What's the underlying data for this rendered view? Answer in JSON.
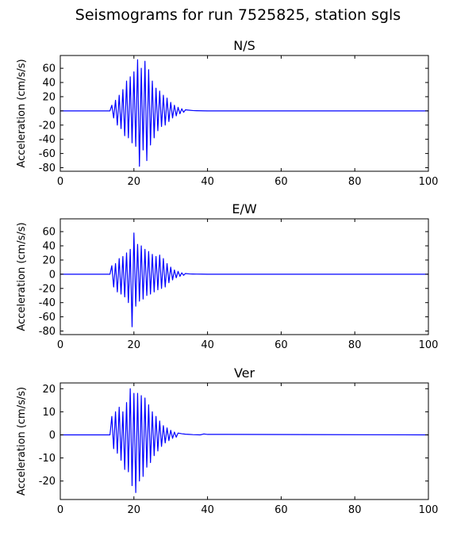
{
  "figure": {
    "title": "Seismograms for run 7525825, station sgls"
  },
  "chart_data": [
    {
      "type": "line",
      "title": "N/S",
      "xlabel": "",
      "ylabel": "Acceleration (cm/s/s)",
      "xlim": [
        0,
        100
      ],
      "ylim": [
        -85,
        78
      ],
      "xticks": [
        0,
        20,
        40,
        60,
        80,
        100
      ],
      "yticks": [
        -80,
        -60,
        -40,
        -20,
        0,
        20,
        40,
        60
      ],
      "grid": false,
      "color": "#0000ff",
      "series": [
        {
          "x": [
            0,
            13.5,
            14,
            14.5,
            15,
            15.5,
            16,
            16.5,
            17,
            17.5,
            18,
            18.5,
            19,
            19.5,
            20,
            20.5,
            21,
            21.5,
            22,
            22.5,
            23,
            23.5,
            24,
            24.5,
            25,
            25.5,
            26,
            26.5,
            27,
            27.5,
            28,
            28.5,
            29,
            29.5,
            30,
            30.5,
            31,
            31.5,
            32,
            32.5,
            33,
            33.5,
            34,
            35,
            36,
            37,
            40,
            100
          ],
          "y": [
            0,
            0,
            8,
            -10,
            15,
            -20,
            22,
            -25,
            30,
            -35,
            42,
            -38,
            48,
            -45,
            55,
            -50,
            72,
            -78,
            60,
            -55,
            70,
            -70,
            58,
            -48,
            42,
            -38,
            32,
            -28,
            28,
            -22,
            22,
            -20,
            18,
            -15,
            12,
            -10,
            8,
            -7,
            5,
            -4,
            3,
            -2,
            1.5,
            1,
            0.5,
            0.3,
            0,
            0
          ]
        }
      ]
    },
    {
      "type": "line",
      "title": "E/W",
      "xlabel": "",
      "ylabel": "Acceleration (cm/s/s)",
      "xlim": [
        0,
        100
      ],
      "ylim": [
        -85,
        78
      ],
      "xticks": [
        0,
        20,
        40,
        60,
        80,
        100
      ],
      "yticks": [
        -80,
        -60,
        -40,
        -20,
        0,
        20,
        40,
        60
      ],
      "grid": false,
      "color": "#0000ff",
      "series": [
        {
          "x": [
            0,
            13.5,
            14,
            14.5,
            15,
            15.5,
            16,
            16.5,
            17,
            17.5,
            18,
            18.5,
            19,
            19.5,
            20,
            20.5,
            21,
            21.5,
            22,
            22.5,
            23,
            23.5,
            24,
            24.5,
            25,
            25.5,
            26,
            26.5,
            27,
            27.5,
            28,
            28.5,
            29,
            29.5,
            30,
            30.5,
            31,
            31.5,
            32,
            32.5,
            33,
            33.5,
            34,
            35,
            36,
            37,
            40,
            100
          ],
          "y": [
            0,
            0,
            12,
            -18,
            15,
            -25,
            22,
            -28,
            25,
            -32,
            30,
            -40,
            35,
            -74,
            58,
            -45,
            42,
            -38,
            40,
            -35,
            35,
            -30,
            32,
            -28,
            28,
            -25,
            25,
            -22,
            27,
            -20,
            22,
            -18,
            15,
            -12,
            10,
            -8,
            6,
            -5,
            4,
            -3,
            2,
            -1.5,
            1,
            0.5,
            0.3,
            0.2,
            0,
            0
          ]
        }
      ]
    },
    {
      "type": "line",
      "title": "Ver",
      "xlabel": "",
      "ylabel": "Acceleration (cm/s/s)",
      "xlim": [
        0,
        100
      ],
      "ylim": [
        -28,
        22.5
      ],
      "xticks": [
        0,
        20,
        40,
        60,
        80,
        100
      ],
      "yticks": [
        -20,
        -10,
        0,
        10,
        20
      ],
      "grid": false,
      "color": "#0000ff",
      "series": [
        {
          "x": [
            0,
            13.5,
            14,
            14.5,
            15,
            15.5,
            16,
            16.5,
            17,
            17.5,
            18,
            18.5,
            19,
            19.5,
            20,
            20.5,
            21,
            21.5,
            22,
            22.5,
            23,
            23.5,
            24,
            24.5,
            25,
            25.5,
            26,
            26.5,
            27,
            27.5,
            28,
            28.5,
            29,
            29.5,
            30,
            30.5,
            31,
            31.5,
            32,
            33,
            34,
            35,
            36,
            38,
            39,
            40,
            45,
            100
          ],
          "y": [
            0,
            0,
            8,
            -6,
            10,
            -8,
            12,
            -11,
            10,
            -15,
            14,
            -16,
            20,
            -22,
            18,
            -25,
            18,
            -20,
            17,
            -18,
            16,
            -14,
            13,
            -12,
            10,
            -9,
            8,
            -7,
            6,
            -5,
            4,
            -3.5,
            3,
            -2.5,
            2,
            -1.5,
            1.2,
            -1,
            0.8,
            0.5,
            0.3,
            0.2,
            0.1,
            0,
            0.4,
            0.2,
            0.2,
            0
          ]
        }
      ]
    }
  ]
}
